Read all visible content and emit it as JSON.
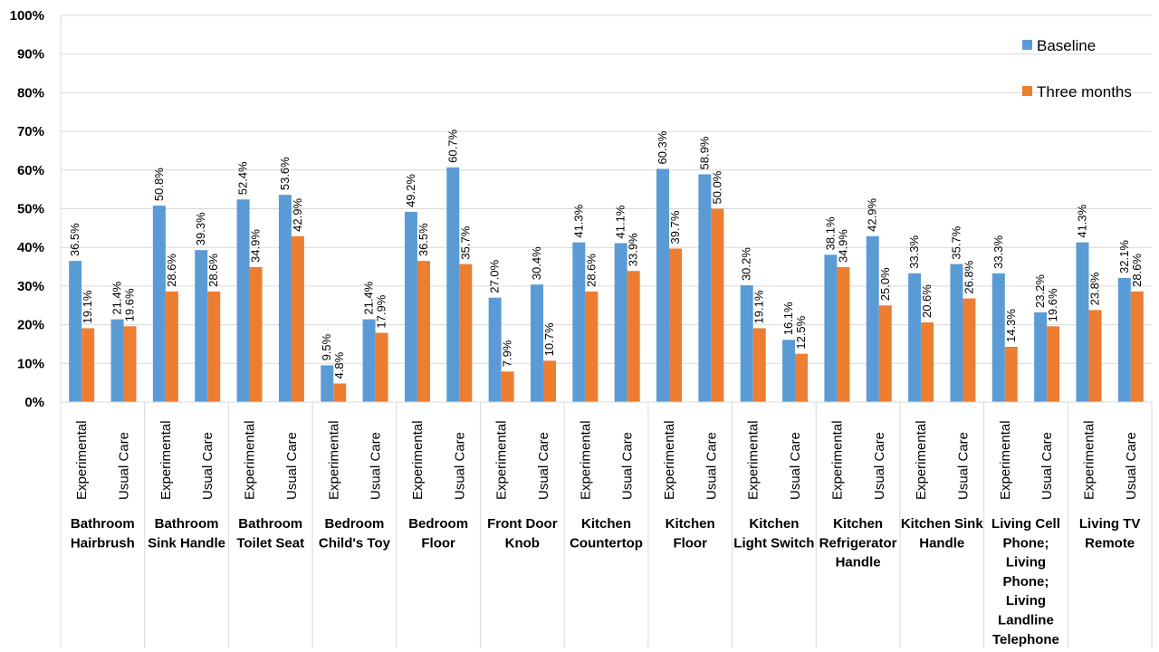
{
  "chart_data": {
    "type": "bar",
    "title": "",
    "ylabel": "",
    "ylim": [
      0,
      100
    ],
    "y_tick_step": 10,
    "y_tick_suffix": "%",
    "grid": true,
    "legend_position": "top-right",
    "series": [
      {
        "name": "Baseline",
        "color": "#5B9BD5"
      },
      {
        "name": "Three months",
        "color": "#ED7D31"
      }
    ],
    "groups": [
      {
        "label": [
          "Bathroom",
          "Hairbrush"
        ],
        "items": [
          {
            "sub": "Experimental",
            "baseline": 36.5,
            "three_months": 19.1
          },
          {
            "sub": "Usual Care",
            "baseline": 21.4,
            "three_months": 19.6
          }
        ]
      },
      {
        "label": [
          "Bathroom",
          "Sink Handle"
        ],
        "items": [
          {
            "sub": "Experimental",
            "baseline": 50.8,
            "three_months": 28.6
          },
          {
            "sub": "Usual Care",
            "baseline": 39.3,
            "three_months": 28.6
          }
        ]
      },
      {
        "label": [
          "Bathroom",
          "Toilet Seat"
        ],
        "items": [
          {
            "sub": "Experimental",
            "baseline": 52.4,
            "three_months": 34.9
          },
          {
            "sub": "Usual Care",
            "baseline": 53.6,
            "three_months": 42.9
          }
        ]
      },
      {
        "label": [
          "Bedroom",
          "Child's Toy"
        ],
        "items": [
          {
            "sub": "Experimental",
            "baseline": 9.5,
            "three_months": 4.8
          },
          {
            "sub": "Usual Care",
            "baseline": 21.4,
            "three_months": 17.9
          }
        ]
      },
      {
        "label": [
          "Bedroom",
          "Floor"
        ],
        "items": [
          {
            "sub": "Experimental",
            "baseline": 49.2,
            "three_months": 36.5
          },
          {
            "sub": "Usual Care",
            "baseline": 60.7,
            "three_months": 35.7
          }
        ]
      },
      {
        "label": [
          "Front Door",
          "Knob"
        ],
        "items": [
          {
            "sub": "Experimental",
            "baseline": 27.0,
            "three_months": 7.9
          },
          {
            "sub": "Usual Care",
            "baseline": 30.4,
            "three_months": 10.7
          }
        ]
      },
      {
        "label": [
          "Kitchen",
          "Countertop"
        ],
        "items": [
          {
            "sub": "Experimental",
            "baseline": 41.3,
            "three_months": 28.6
          },
          {
            "sub": "Usual Care",
            "baseline": 41.1,
            "three_months": 33.9
          }
        ]
      },
      {
        "label": [
          "Kitchen",
          "Floor"
        ],
        "items": [
          {
            "sub": "Experimental",
            "baseline": 60.3,
            "three_months": 39.7
          },
          {
            "sub": "Usual Care",
            "baseline": 58.9,
            "three_months": 50.0
          }
        ]
      },
      {
        "label": [
          "Kitchen",
          "Light Switch"
        ],
        "items": [
          {
            "sub": "Experimental",
            "baseline": 30.2,
            "three_months": 19.1
          },
          {
            "sub": "Usual Care",
            "baseline": 16.1,
            "three_months": 12.5
          }
        ]
      },
      {
        "label": [
          "Kitchen",
          "Refrigerator",
          "Handle"
        ],
        "items": [
          {
            "sub": "Experimental",
            "baseline": 38.1,
            "three_months": 34.9
          },
          {
            "sub": "Usual Care",
            "baseline": 42.9,
            "three_months": 25.0
          }
        ]
      },
      {
        "label": [
          "Kitchen Sink",
          "Handle"
        ],
        "items": [
          {
            "sub": "Experimental",
            "baseline": 33.3,
            "three_months": 20.6
          },
          {
            "sub": "Usual Care",
            "baseline": 35.7,
            "three_months": 26.8
          }
        ]
      },
      {
        "label": [
          "Living Cell",
          "Phone;",
          "Living",
          "Phone;",
          "Living",
          "Landline",
          "Telephone"
        ],
        "items": [
          {
            "sub": "Experimental",
            "baseline": 33.3,
            "three_months": 14.3
          },
          {
            "sub": "Usual Care",
            "baseline": 23.2,
            "three_months": 19.6
          }
        ]
      },
      {
        "label": [
          "Living TV",
          "Remote"
        ],
        "items": [
          {
            "sub": "Experimental",
            "baseline": 41.3,
            "three_months": 23.8
          },
          {
            "sub": "Usual Care",
            "baseline": 32.1,
            "three_months": 28.6
          }
        ]
      }
    ]
  }
}
